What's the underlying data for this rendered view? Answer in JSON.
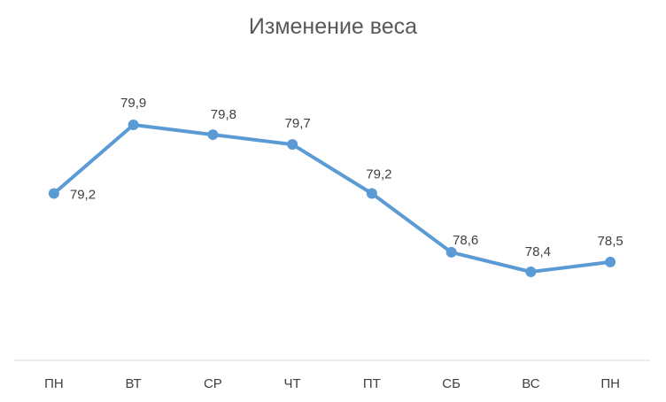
{
  "chart_data": {
    "type": "line",
    "title": "Изменение веса",
    "categories": [
      "ПН",
      "ВТ",
      "СР",
      "ЧТ",
      "ПТ",
      "СБ",
      "ВС",
      "ПН"
    ],
    "values": [
      79.2,
      79.9,
      79.8,
      79.7,
      79.2,
      78.6,
      78.4,
      78.5
    ],
    "data_labels": [
      "79,2",
      "79,9",
      "79,8",
      "79,7",
      "79,2",
      "78,6",
      "78,4",
      "78,5"
    ],
    "xlabel": "",
    "ylabel": "",
    "ylim": [
      77.5,
      80.5
    ],
    "grid": false,
    "legend": "none",
    "colors": {
      "series": "#5b9bd5",
      "axis": "#d9d9d9",
      "text": "#404040",
      "title": "#595959"
    }
  }
}
